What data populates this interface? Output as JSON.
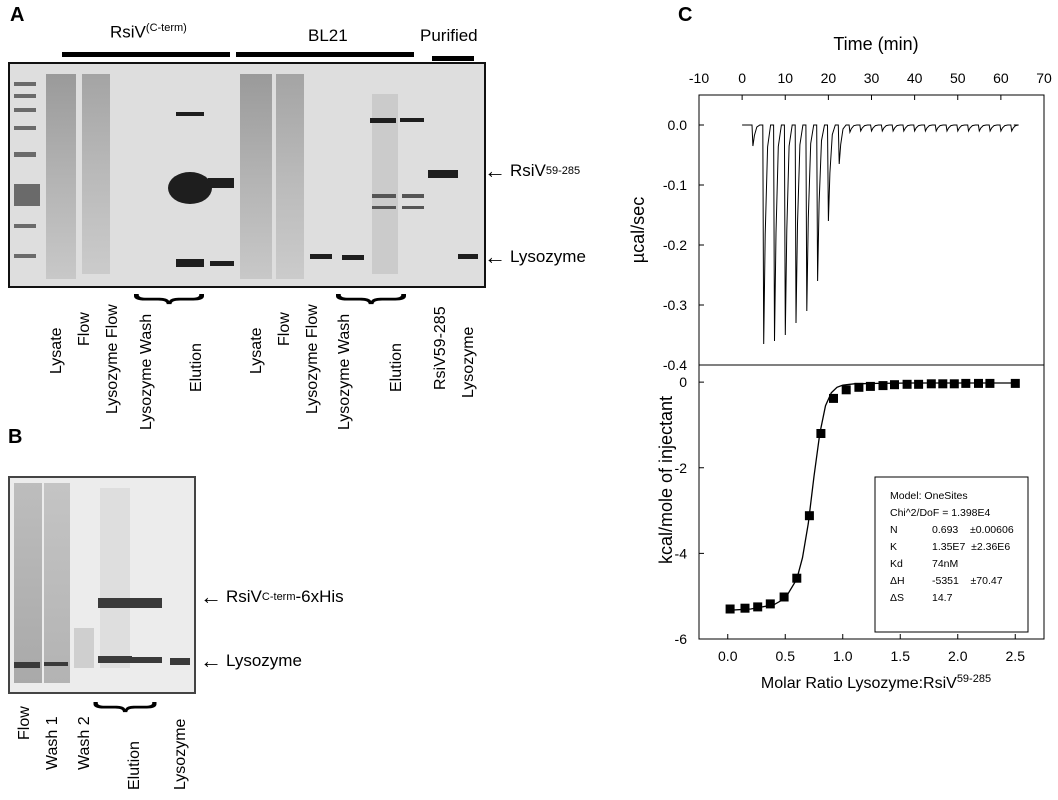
{
  "panelA": {
    "letter": "A",
    "groups": [
      {
        "label": "RsiV",
        "sup": "(C-term)"
      },
      {
        "label": "BL21",
        "sup": ""
      },
      {
        "label": "Purified",
        "sup": ""
      }
    ],
    "markers": [
      {
        "label": "RsiV",
        "sup": "59-285"
      },
      {
        "label": "Lysozyme",
        "sup": ""
      }
    ],
    "lanes": [
      "Lysate",
      "Flow",
      "Lysozyme Flow",
      "Lysozyme Wash",
      "Elution",
      "Lysate",
      "Flow",
      "Lysozyme Flow",
      "Lysozyme Wash",
      "Elution",
      "RsiV59-285",
      "Lysozyme"
    ]
  },
  "panelB": {
    "letter": "B",
    "markers": [
      {
        "label": "RsiV",
        "sup": "C-term",
        "suffix": "-6xHis"
      },
      {
        "label": "Lysozyme",
        "sup": "",
        "suffix": ""
      }
    ],
    "lanes": [
      "Flow",
      "Wash 1",
      "Wash 2",
      "Elution",
      "Lysozyme"
    ]
  },
  "panelC": {
    "letter": "C",
    "top_xlabel": "Time (min)",
    "top_ylabel": "µcal/sec",
    "bottom_ylabel": "kcal/mole of injectant",
    "bottom_xlabel": "Molar Ratio Lysozyme:RsiV",
    "bottom_xlabel_sup": "59-285",
    "fit_box": [
      {
        "k": "Model: OneSites",
        "v": ""
      },
      {
        "k": "Chi^2/DoF = 1.398E4",
        "v": ""
      },
      {
        "k": "N",
        "v": "0.693    ±0.00606"
      },
      {
        "k": "K",
        "v": "1.35E7  ±2.36E6"
      },
      {
        "k": "Kd",
        "v": "74nM"
      },
      {
        "k": "ΔH",
        "v": "-5351    ±70.47"
      },
      {
        "k": "ΔS",
        "v": "14.7"
      }
    ]
  },
  "chart_data": [
    {
      "type": "line",
      "xlabel": "Time (min)",
      "ylabel": "µcal/sec",
      "xlim": [
        -10,
        70
      ],
      "ylim": [
        -0.4,
        0.05
      ],
      "xticks": [
        -10,
        0,
        10,
        20,
        30,
        40,
        50,
        60,
        70
      ],
      "yticks": [
        0.0,
        -0.1,
        -0.2,
        -0.3,
        -0.4
      ],
      "injections": {
        "times": [
          2.5,
          5,
          7.5,
          10,
          12.5,
          15,
          17.5,
          20,
          22.5,
          25,
          27.5,
          30,
          32.5,
          35,
          37.5,
          40,
          42.5,
          45,
          47.5,
          50,
          52.5,
          55,
          57.5,
          60,
          62.5
        ],
        "peaks": [
          -0.035,
          -0.365,
          -0.36,
          -0.35,
          -0.33,
          -0.31,
          -0.26,
          -0.16,
          -0.065,
          -0.012,
          -0.01,
          -0.01,
          -0.01,
          -0.01,
          -0.01,
          -0.01,
          -0.01,
          -0.01,
          -0.01,
          -0.01,
          -0.01,
          -0.01,
          -0.01,
          -0.01,
          -0.01
        ]
      }
    },
    {
      "type": "scatter",
      "xlabel": "Molar Ratio Lysozyme:RsiV59-285",
      "ylabel": "kcal/mole of injectant",
      "xlim": [
        -0.25,
        2.75
      ],
      "ylim": [
        -6,
        0.4
      ],
      "xticks": [
        0.0,
        0.5,
        1.0,
        1.5,
        2.0,
        2.5
      ],
      "yticks": [
        0,
        -2,
        -4,
        -6
      ],
      "points": {
        "x": [
          0.02,
          0.15,
          0.26,
          0.37,
          0.49,
          0.6,
          0.71,
          0.81,
          0.92,
          1.03,
          1.14,
          1.24,
          1.35,
          1.45,
          1.56,
          1.66,
          1.77,
          1.87,
          1.97,
          2.07,
          2.18,
          2.28,
          2.5
        ],
        "y": [
          -5.3,
          -5.28,
          -5.25,
          -5.18,
          -5.02,
          -4.58,
          -3.12,
          -1.2,
          -0.38,
          -0.18,
          -0.12,
          -0.1,
          -0.08,
          -0.06,
          -0.05,
          -0.05,
          -0.04,
          -0.04,
          -0.04,
          -0.03,
          -0.03,
          -0.03,
          -0.03
        ]
      },
      "fit": {
        "x": [
          0.0,
          0.2,
          0.4,
          0.5,
          0.6,
          0.65,
          0.7,
          0.75,
          0.8,
          0.85,
          0.9,
          0.95,
          1.0,
          1.1,
          1.3,
          1.6,
          2.0,
          2.5
        ],
        "y": [
          -5.33,
          -5.3,
          -5.2,
          -5.05,
          -4.6,
          -4.1,
          -3.3,
          -2.2,
          -1.2,
          -0.55,
          -0.25,
          -0.12,
          -0.07,
          -0.04,
          -0.03,
          -0.02,
          -0.02,
          -0.02
        ]
      }
    }
  ]
}
